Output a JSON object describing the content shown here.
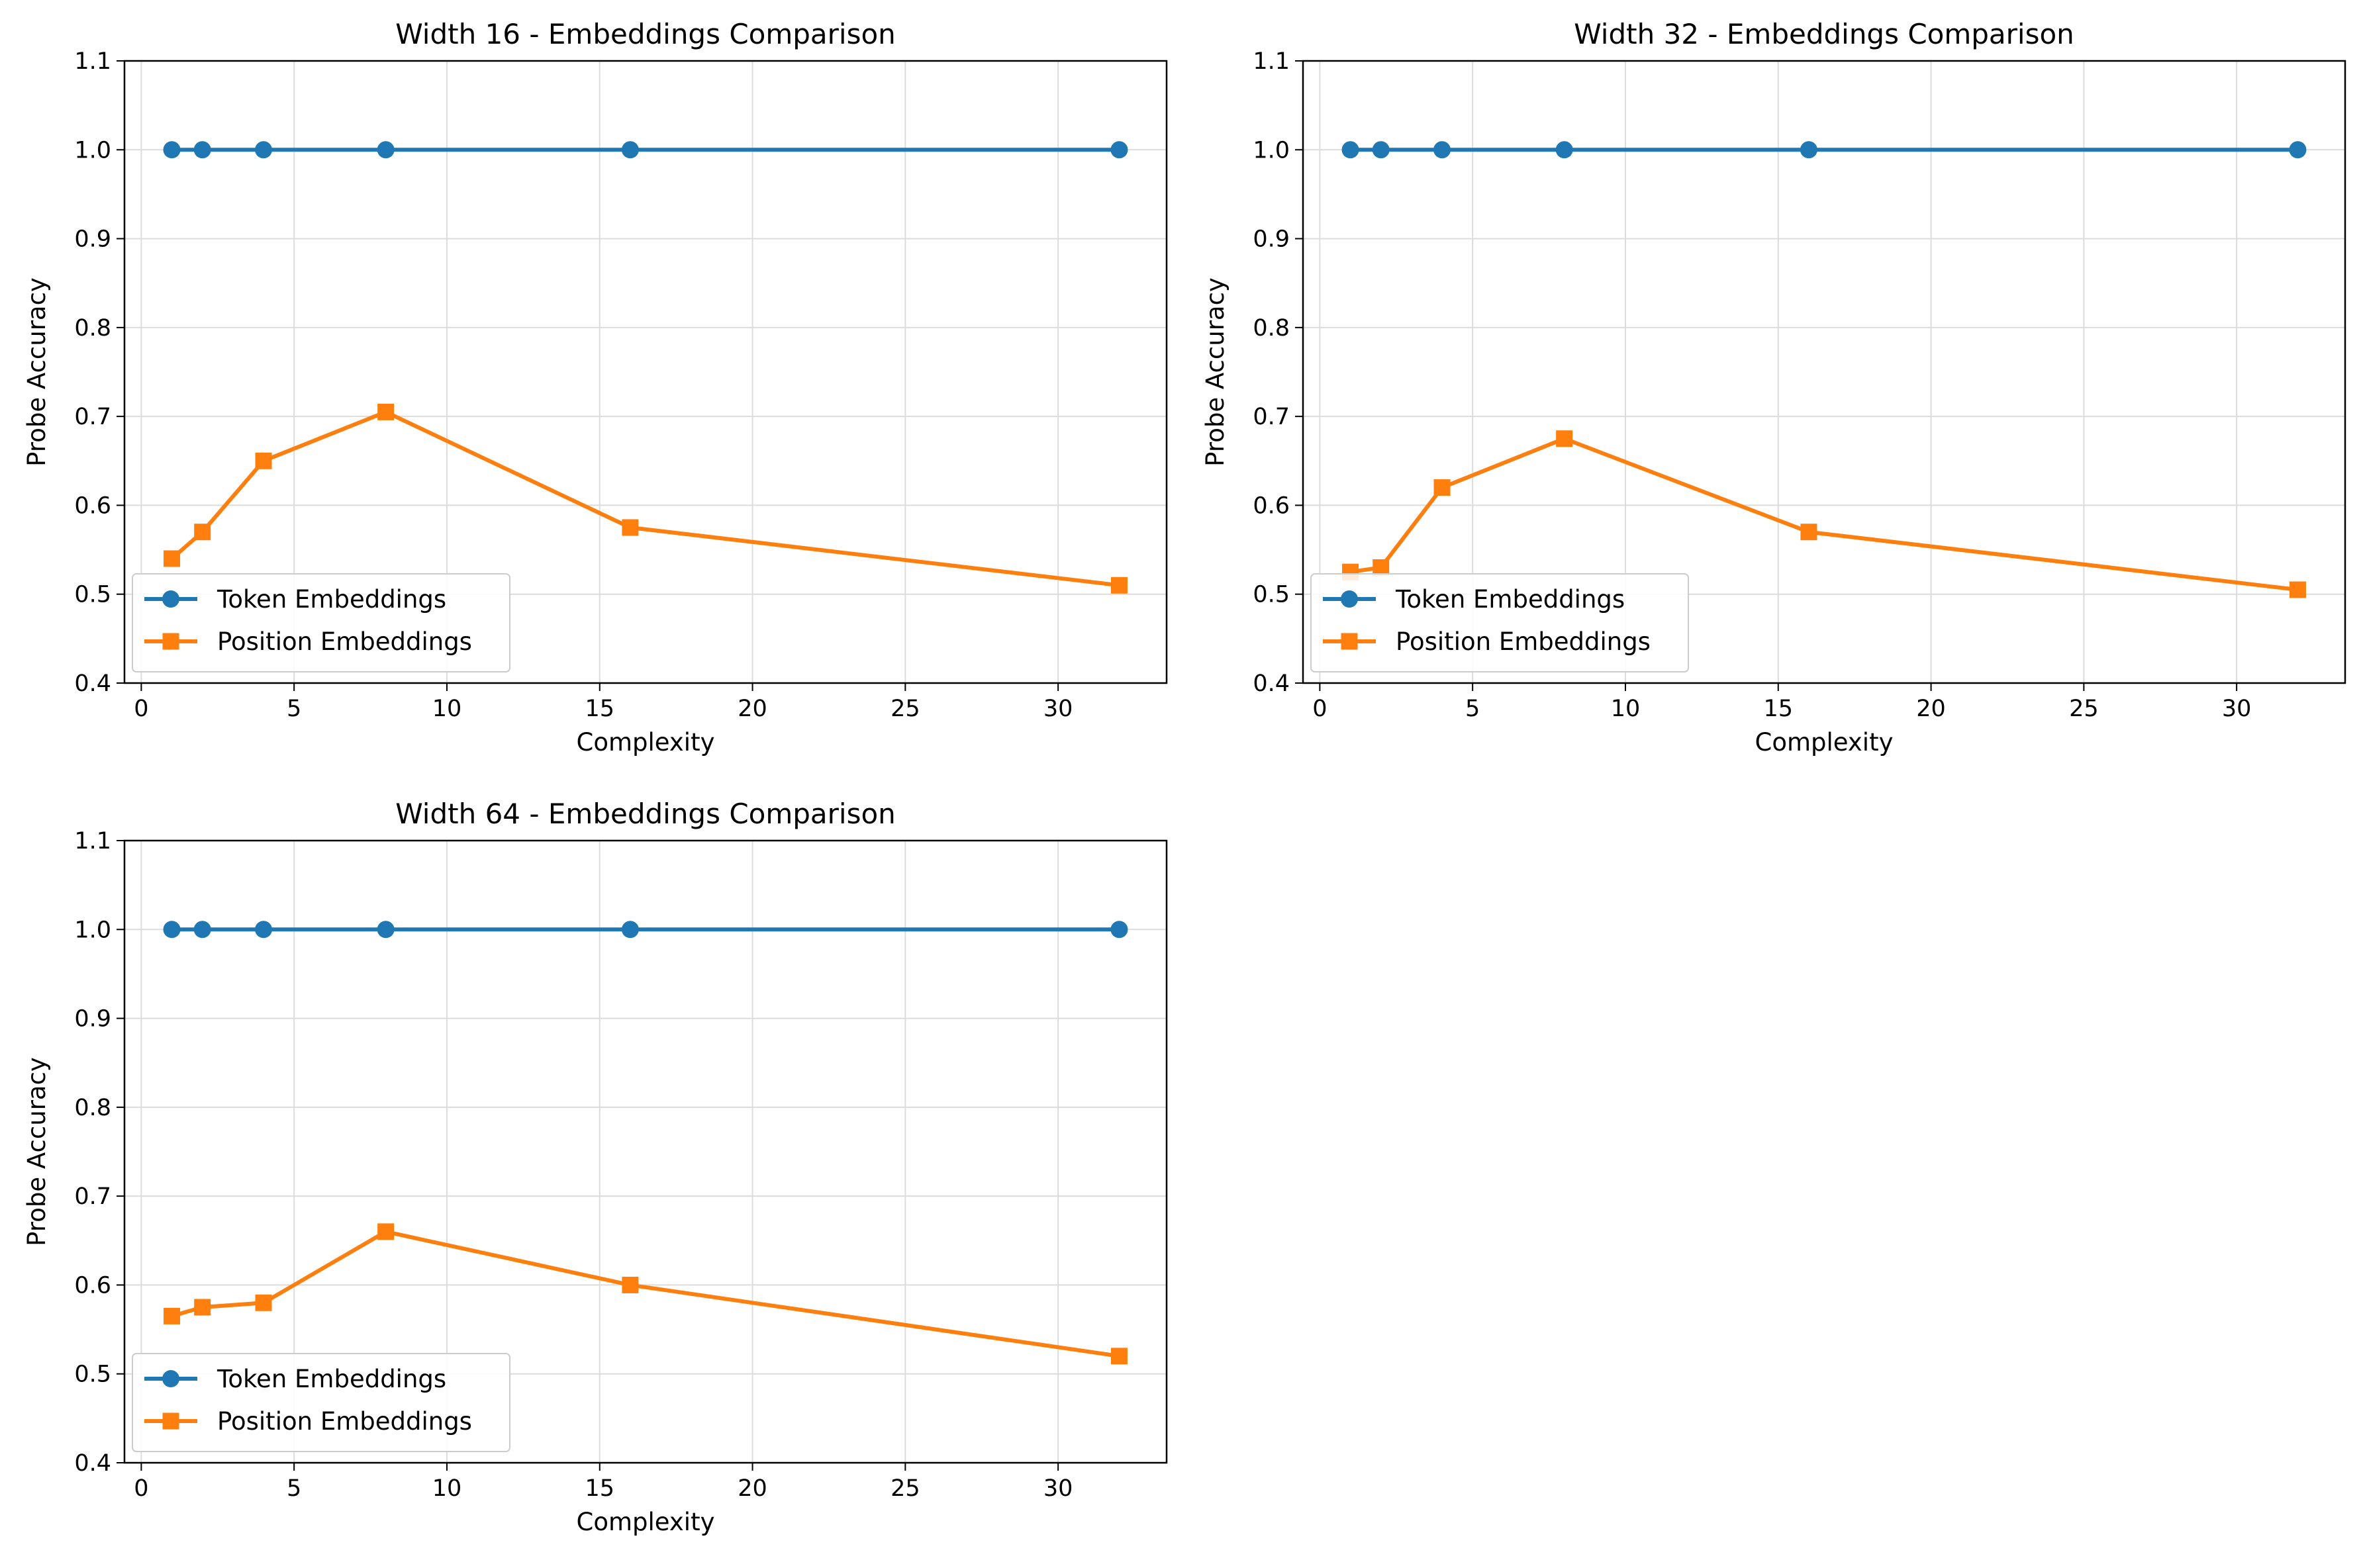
{
  "chart_data": [
    {
      "type": "line",
      "title": "Width 16 - Embeddings Comparison",
      "xlabel": "Complexity",
      "ylabel": "Probe Accuracy",
      "xlim": [
        -0.55,
        33.55
      ],
      "ylim": [
        0.4,
        1.1
      ],
      "xticks": [
        0,
        5,
        10,
        15,
        20,
        25,
        30
      ],
      "yticks": [
        0.4,
        0.5,
        0.6,
        0.7,
        0.8,
        0.9,
        1.0,
        1.1
      ],
      "ytick_labels": [
        "0.4",
        "0.5",
        "0.6",
        "0.7",
        "0.8",
        "0.9",
        "1.0",
        "1.1"
      ],
      "grid": true,
      "legend_position": "lower-left",
      "x": [
        1,
        2,
        4,
        8,
        16,
        32
      ],
      "series": [
        {
          "name": "Token Embeddings",
          "color": "#1f77b4",
          "marker": "circle",
          "values": [
            1.0,
            1.0,
            1.0,
            1.0,
            1.0,
            1.0
          ]
        },
        {
          "name": "Position Embeddings",
          "color": "#ff7f0e",
          "marker": "square",
          "values": [
            0.54,
            0.57,
            0.65,
            0.705,
            0.575,
            0.51
          ]
        }
      ]
    },
    {
      "type": "line",
      "title": "Width 32 - Embeddings Comparison",
      "xlabel": "Complexity",
      "ylabel": "Probe Accuracy",
      "xlim": [
        -0.55,
        33.55
      ],
      "ylim": [
        0.4,
        1.1
      ],
      "xticks": [
        0,
        5,
        10,
        15,
        20,
        25,
        30
      ],
      "yticks": [
        0.4,
        0.5,
        0.6,
        0.7,
        0.8,
        0.9,
        1.0,
        1.1
      ],
      "ytick_labels": [
        "0.4",
        "0.5",
        "0.6",
        "0.7",
        "0.8",
        "0.9",
        "1.0",
        "1.1"
      ],
      "grid": true,
      "legend_position": "lower-left",
      "x": [
        1,
        2,
        4,
        8,
        16,
        32
      ],
      "series": [
        {
          "name": "Token Embeddings",
          "color": "#1f77b4",
          "marker": "circle",
          "values": [
            1.0,
            1.0,
            1.0,
            1.0,
            1.0,
            1.0
          ]
        },
        {
          "name": "Position Embeddings",
          "color": "#ff7f0e",
          "marker": "square",
          "values": [
            0.525,
            0.53,
            0.62,
            0.675,
            0.57,
            0.505
          ]
        }
      ]
    },
    {
      "type": "line",
      "title": "Width 64 - Embeddings Comparison",
      "xlabel": "Complexity",
      "ylabel": "Probe Accuracy",
      "xlim": [
        -0.55,
        33.55
      ],
      "ylim": [
        0.4,
        1.1
      ],
      "xticks": [
        0,
        5,
        10,
        15,
        20,
        25,
        30
      ],
      "yticks": [
        0.4,
        0.5,
        0.6,
        0.7,
        0.8,
        0.9,
        1.0,
        1.1
      ],
      "ytick_labels": [
        "0.4",
        "0.5",
        "0.6",
        "0.7",
        "0.8",
        "0.9",
        "1.0",
        "1.1"
      ],
      "grid": true,
      "legend_position": "lower-left",
      "x": [
        1,
        2,
        4,
        8,
        16,
        32
      ],
      "series": [
        {
          "name": "Token Embeddings",
          "color": "#1f77b4",
          "marker": "circle",
          "values": [
            1.0,
            1.0,
            1.0,
            1.0,
            1.0,
            1.0
          ]
        },
        {
          "name": "Position Embeddings",
          "color": "#ff7f0e",
          "marker": "square",
          "values": [
            0.565,
            0.575,
            0.58,
            0.66,
            0.6,
            0.52
          ]
        }
      ]
    }
  ]
}
